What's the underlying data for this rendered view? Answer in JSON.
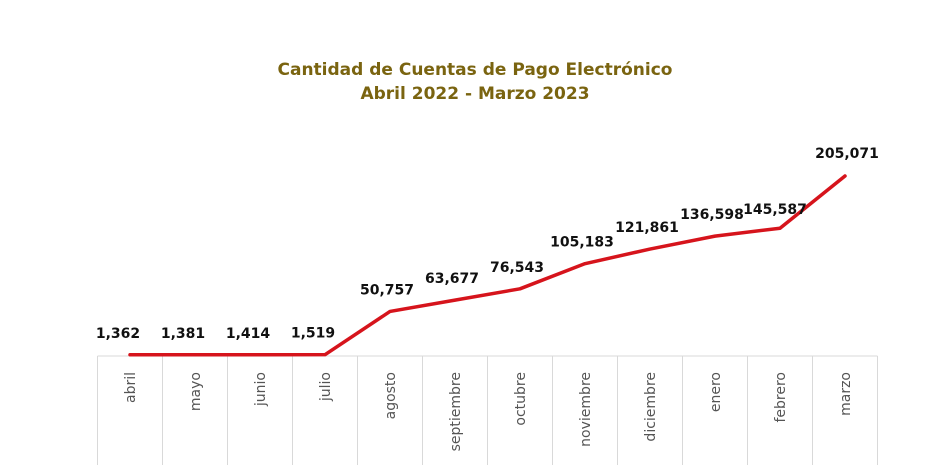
{
  "chart_data": {
    "type": "line",
    "title": "Cantidad de Cuentas de Pago Electrónico",
    "subtitle": "Abril 2022 - Marzo 2023",
    "categories": [
      "abril",
      "mayo",
      "junio",
      "julio",
      "agosto",
      "septiembre",
      "octubre",
      "noviembre",
      "diciembre",
      "enero",
      "febrero",
      "marzo"
    ],
    "values": [
      1362,
      1381,
      1414,
      1519,
      50757,
      63677,
      76543,
      105183,
      121861,
      136598,
      145587,
      205071
    ],
    "value_labels": [
      "1,362",
      "1,381",
      "1,414",
      "1,519",
      "50,757",
      "63,677",
      "76,543",
      "105,183",
      "121,861",
      "136,598",
      "145,587",
      "205,071"
    ],
    "line_color": "#d6141c",
    "grid": false,
    "legend": "none"
  }
}
